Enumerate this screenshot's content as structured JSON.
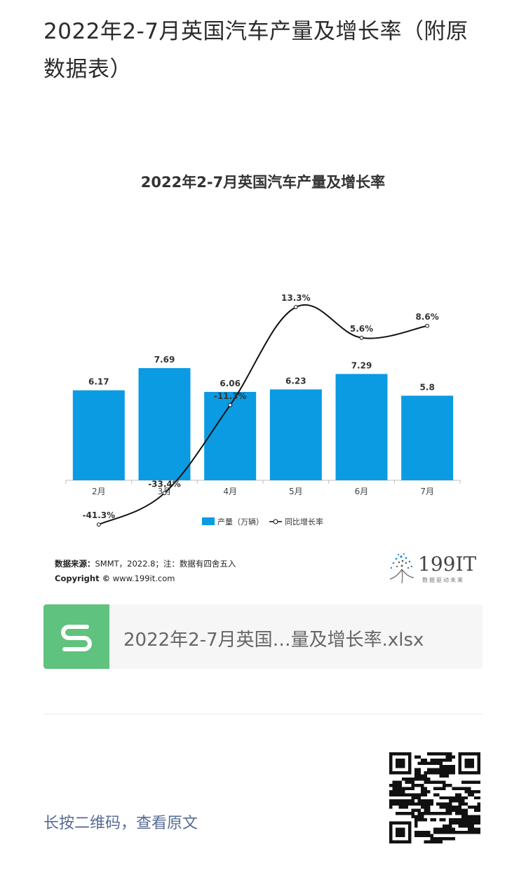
{
  "article": {
    "title": "2022年2-7月英国汽车产量及增长率（附原数据表）"
  },
  "chart_data": {
    "type": "bar",
    "title": "2022年2-7月英国汽车产量及增长率",
    "categories": [
      "2月",
      "3月",
      "4月",
      "5月",
      "6月",
      "7月"
    ],
    "series": [
      {
        "name": "产量（万辆）",
        "type": "bar",
        "color": "#0a9be3",
        "values": [
          6.17,
          7.69,
          6.06,
          6.23,
          7.29,
          5.8
        ],
        "labels": [
          "6.17",
          "7.69",
          "6.06",
          "6.23",
          "7.29",
          "5.8"
        ]
      },
      {
        "name": "同比增长率",
        "type": "line",
        "color": "#111111",
        "values": [
          -41.3,
          -33.4,
          -11.3,
          13.3,
          5.6,
          8.6
        ],
        "labels": [
          "-41.3%",
          "-33.4%",
          "-11.3%",
          "13.3%",
          "5.6%",
          "8.6%"
        ]
      }
    ],
    "legend": {
      "position": "bottom",
      "bar_label": "产量（万辆）",
      "line_label": "同比增长率"
    },
    "source_label": "数据来源：",
    "source_text": "SMMT，2022.8；注：数据有四舍五入",
    "copyright_label": "Copyright ©",
    "copyright_text": "www.199it.com"
  },
  "logo": {
    "text": "199IT",
    "subtitle": "数据驱动未来"
  },
  "attachment": {
    "file_name": "2022年2-7月英国…量及增长率.xlsx",
    "icon": "spreadsheet-s-icon",
    "icon_color": "#5fc27e"
  },
  "footer": {
    "qr_hint": "长按二维码，查看原文",
    "qr_icon": "qr-code-icon"
  },
  "colors": {
    "bar": "#0a9be3",
    "link": "#576b95"
  }
}
